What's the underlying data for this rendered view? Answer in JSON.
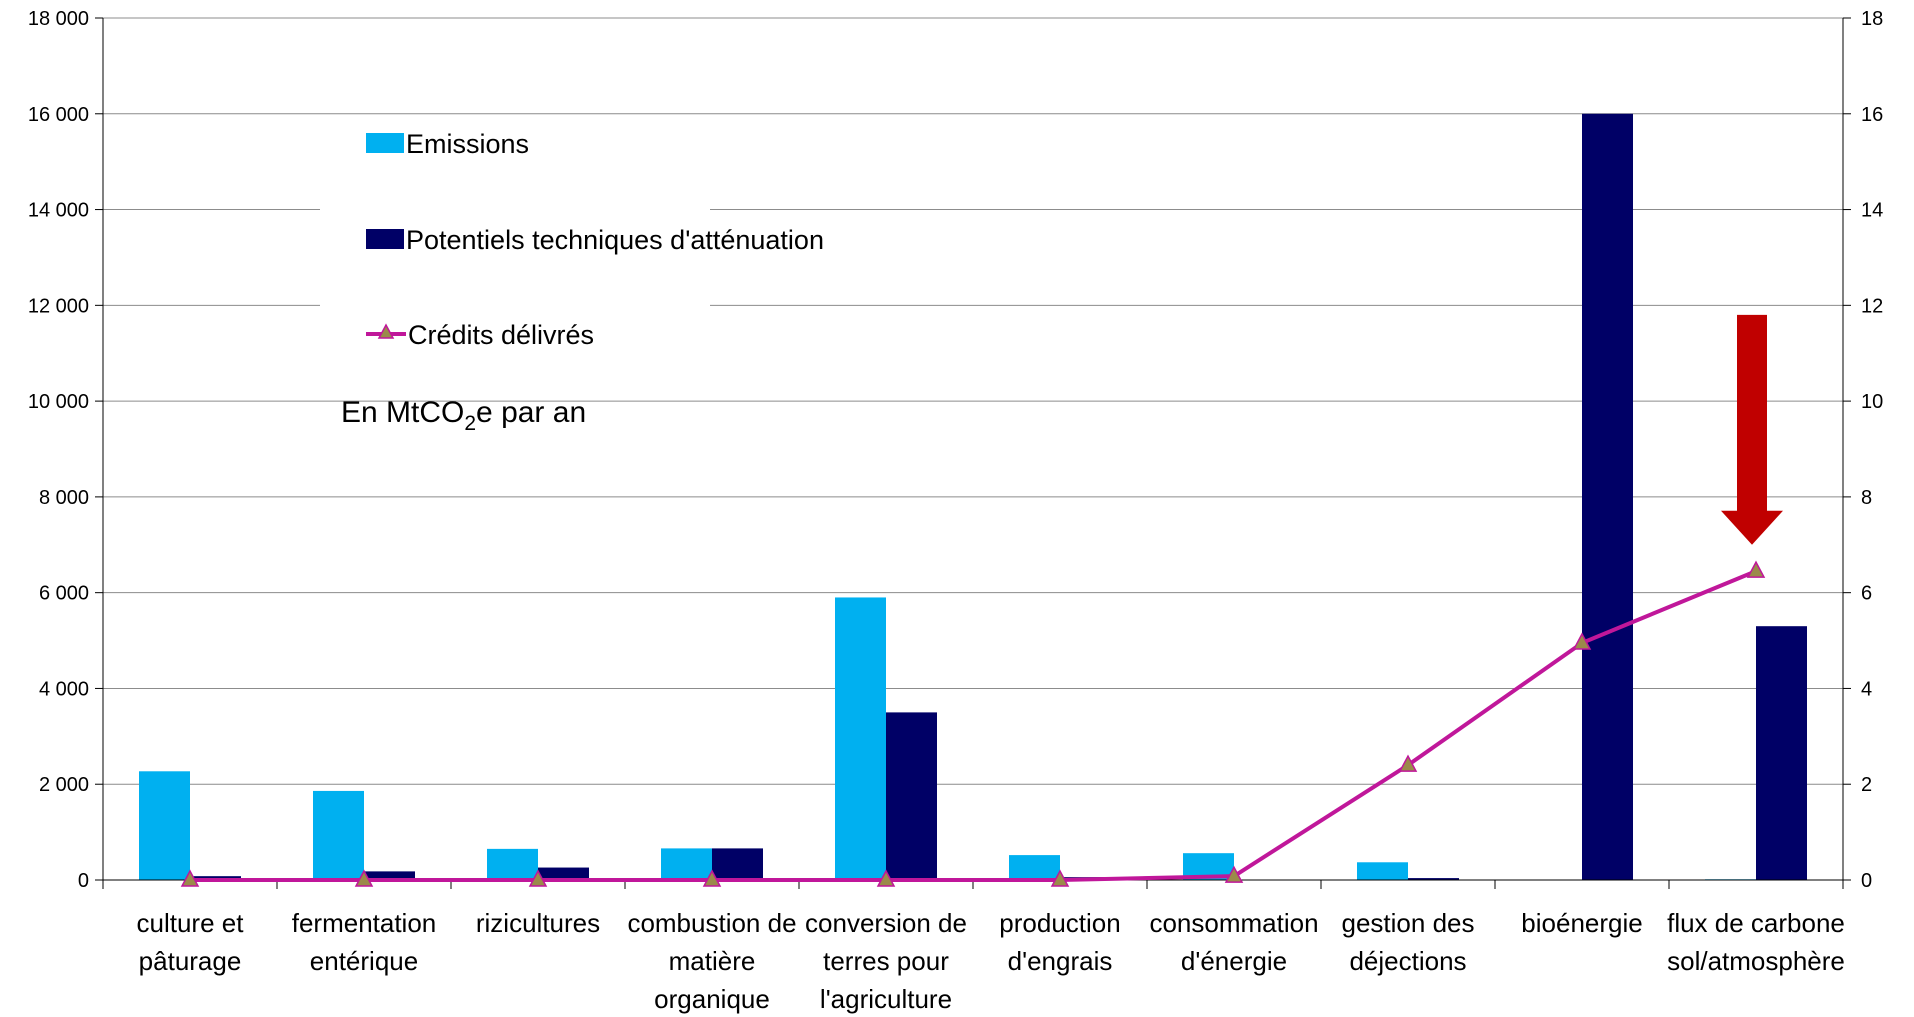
{
  "chart_data": {
    "type": "bar",
    "categories": [
      [
        "culture et",
        "pâturage"
      ],
      [
        "fermentation",
        "entérique"
      ],
      [
        "rizicultures"
      ],
      [
        "combustion de",
        "matière",
        "organique"
      ],
      [
        "conversion de",
        "terres pour",
        "l'agriculture"
      ],
      [
        "production",
        "d'engrais"
      ],
      [
        "consommation",
        "d'énergie"
      ],
      [
        "gestion des",
        "déjections"
      ],
      [
        "bioénergie"
      ],
      [
        "flux de carbone",
        "sol/atmosphère"
      ]
    ],
    "series": [
      {
        "name": "Emissions",
        "type": "bar",
        "axis": "left",
        "color": "#00b0f0",
        "values": [
          2270,
          1860,
          650,
          660,
          5900,
          520,
          560,
          370,
          0,
          15
        ]
      },
      {
        "name": "Potentiels techniques d'atténuation",
        "type": "bar",
        "axis": "left",
        "color": "#000066",
        "values": [
          80,
          180,
          260,
          660,
          3500,
          60,
          10,
          40,
          16000,
          5300
        ]
      },
      {
        "name": "Crédits délivrés",
        "type": "line",
        "axis": "right",
        "color": "#c0179a",
        "marker_color": "#9b8a4a",
        "values": [
          0,
          0,
          0,
          0,
          0,
          0,
          0.08,
          2.4,
          4.95,
          6.45
        ]
      }
    ],
    "ylim_left": [
      0,
      18000
    ],
    "yticks_left": [
      "0",
      "2 000",
      "4 000",
      "6 000",
      "8 000",
      "10 000",
      "12 000",
      "14 000",
      "16 000",
      "18 000"
    ],
    "ylim_right": [
      0,
      18
    ],
    "yticks_right": [
      "0",
      "2",
      "4",
      "6",
      "8",
      "10",
      "12",
      "14",
      "16",
      "18"
    ],
    "grid": true,
    "legend_position": "top-left",
    "unit_label": {
      "prefix": "En MtCO",
      "sub": "2",
      "suffix": "e par an"
    },
    "annotation": {
      "type": "arrow-down",
      "color": "#c00000",
      "category_index": 9,
      "from_right": 11.8,
      "to_right": 7.0
    }
  }
}
